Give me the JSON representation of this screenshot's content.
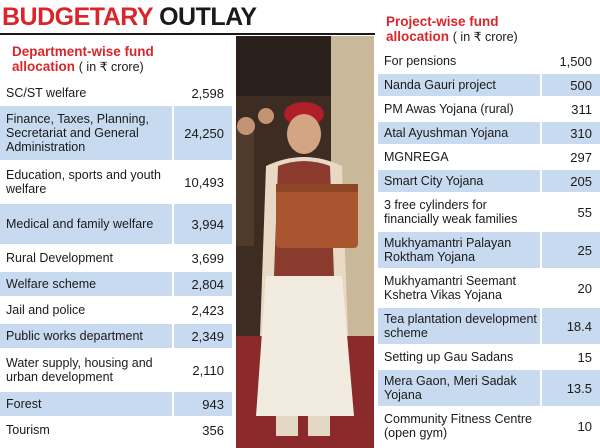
{
  "headline": {
    "part1": "BUDGETARY",
    "part2": "OUTLAY"
  },
  "department": {
    "title": "Department-wise fund",
    "title2": "allocation",
    "unit": "( in ₹ crore)",
    "rows": [
      {
        "name": "SC/ST welfare",
        "value": "2,598"
      },
      {
        "name": "Finance, Taxes, Planning, Secretariat and General Administration",
        "value": "24,250"
      },
      {
        "name": "Education, sports and youth welfare",
        "value": "10,493"
      },
      {
        "name": "Medical and family welfare",
        "value": "3,994"
      },
      {
        "name": "Rural Development",
        "value": "3,699"
      },
      {
        "name": "Welfare scheme",
        "value": "2,804"
      },
      {
        "name": "Jail and police",
        "value": "2,423"
      },
      {
        "name": "Public works department",
        "value": "2,349"
      },
      {
        "name": "Water supply, housing and urban development",
        "value": "2,110"
      },
      {
        "name": "Forest",
        "value": "943"
      },
      {
        "name": "Tourism",
        "value": "356"
      }
    ]
  },
  "project": {
    "title": "Project-wise fund",
    "title2": "allocation",
    "unit": "( in ₹ crore)",
    "rows": [
      {
        "name": "For pensions",
        "value": "1,500"
      },
      {
        "name": "Nanda Gauri project",
        "value": "500"
      },
      {
        "name": "PM Awas Yojana (rural)",
        "value": "311"
      },
      {
        "name": "Atal Ayushman Yojana",
        "value": "310"
      },
      {
        "name": "MGNREGA",
        "value": "297"
      },
      {
        "name": "Smart City Yojana",
        "value": "205"
      },
      {
        "name": "3 free cylinders for financially weak families",
        "value": "55"
      },
      {
        "name": "Mukhyamantri Palayan Roktham Yojana",
        "value": "25"
      },
      {
        "name": "Mukhyamantri Seemant Kshetra Vikas Yojana",
        "value": "20"
      },
      {
        "name": "Tea plantation development scheme",
        "value": "18.4"
      },
      {
        "name": "Setting up Gau Sadans",
        "value": "15"
      },
      {
        "name": "Mera Gaon, Meri Sadak Yojana",
        "value": "13.5"
      },
      {
        "name": "Community Fitness Centre (open gym)",
        "value": "10"
      }
    ]
  }
}
